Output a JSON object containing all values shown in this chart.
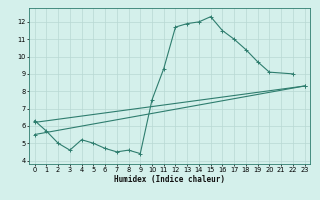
{
  "xlabel": "Humidex (Indice chaleur)",
  "line_color": "#2e7d6e",
  "bg_color": "#d4f0eb",
  "grid_color": "#b8d8d4",
  "spine_color": "#2e7d6e",
  "xlim": [
    -0.5,
    23.5
  ],
  "ylim": [
    3.8,
    12.8
  ],
  "yticks": [
    4,
    5,
    6,
    7,
    8,
    9,
    10,
    11,
    12
  ],
  "xticks": [
    0,
    1,
    2,
    3,
    4,
    5,
    6,
    7,
    8,
    9,
    10,
    11,
    12,
    13,
    14,
    15,
    16,
    17,
    18,
    19,
    20,
    21,
    22,
    23
  ],
  "line1_x": [
    0,
    1,
    2,
    3,
    4,
    5,
    6,
    7,
    8,
    9,
    10,
    11,
    12,
    13,
    14,
    15,
    16,
    17,
    18,
    19,
    20,
    22
  ],
  "line1_y": [
    6.3,
    5.7,
    5.0,
    4.6,
    5.2,
    5.0,
    4.7,
    4.5,
    4.6,
    4.4,
    7.5,
    9.3,
    11.7,
    11.9,
    12.0,
    12.3,
    11.5,
    11.0,
    10.4,
    9.7,
    9.1,
    9.0
  ],
  "line2_x": [
    0,
    23
  ],
  "line2_y": [
    6.2,
    8.3
  ],
  "line3_x": [
    0,
    23
  ],
  "line3_y": [
    5.5,
    8.3
  ],
  "xlabel_fontsize": 5.5,
  "tick_fontsize": 4.8,
  "linewidth": 0.8,
  "markersize": 2.5,
  "markeredgewidth": 0.7
}
